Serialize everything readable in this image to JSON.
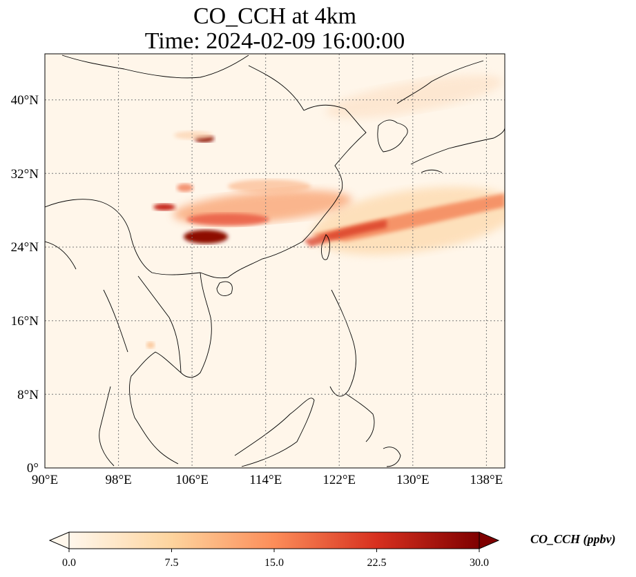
{
  "title": {
    "line1": "CO_CCH at 4km",
    "line2": "Time: 2024-02-09 16:00:00"
  },
  "axes": {
    "lon_labels": [
      "90°E",
      "98°E",
      "106°E",
      "114°E",
      "122°E",
      "130°E",
      "138°E"
    ],
    "lat_labels": [
      "0°",
      "8°N",
      "16°N",
      "24°N",
      "32°N",
      "40°N"
    ],
    "lon_range": [
      90,
      140
    ],
    "lat_range": [
      0,
      45
    ]
  },
  "colorbar": {
    "label": "CO_CCH (ppbv)",
    "tick_labels": [
      "0.0",
      "7.5",
      "15.0",
      "22.5",
      "30.0"
    ],
    "range": [
      0,
      30
    ],
    "colormap": [
      "#fff7ec",
      "#fdd49e",
      "#fc8d59",
      "#d7301f",
      "#7f0000"
    ],
    "extend": "both"
  },
  "colors": {
    "background": "#fff6ea",
    "coastline": "#000000",
    "gridline": "#777777"
  }
}
